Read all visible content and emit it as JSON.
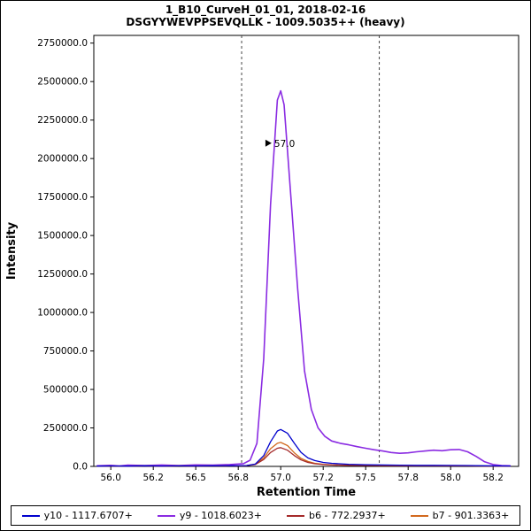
{
  "title": {
    "line1": "1_B10_CurveH_01_01, 2018-02-16",
    "line2": "DSGYYWEVPPSEVQLLK - 1009.5035++ (heavy)"
  },
  "chart_data": {
    "type": "line",
    "title": "1_B10_CurveH_01_01, 2018-02-16",
    "subtitle": "DSGYYWEVPPSEVQLLK - 1009.5035++ (heavy)",
    "xlabel": "Retention Time",
    "ylabel": "Intensity",
    "xlim": [
      55.9,
      58.4
    ],
    "ylim": [
      0,
      2800000
    ],
    "grid": false,
    "legend_position": "bottom",
    "y_tick_step": 250000,
    "y_tick_max": 2750000,
    "x_tick_values": [
      56.0,
      56.25,
      56.5,
      56.75,
      57.0,
      57.25,
      57.5,
      57.75,
      58.0,
      58.25
    ],
    "x_tick_labels": [
      "56.0",
      "56.2",
      "56.5",
      "56.8",
      "57.0",
      "57.2",
      "57.5",
      "57.8",
      "58.0",
      "58.2"
    ],
    "integration_boundaries": [
      56.77,
      57.58
    ],
    "annotation": {
      "label": "57.0",
      "x": 56.91,
      "y": 2100000,
      "color": "#6a35c8"
    },
    "draw_order": [
      1,
      3,
      2,
      0
    ],
    "series": [
      {
        "id": "y10",
        "label": "y10 - 1117.6707+",
        "color": "#0000cd",
        "stroke_width": 1.3,
        "points": [
          [
            55.92,
            2000
          ],
          [
            56.0,
            3000
          ],
          [
            56.1,
            2000
          ],
          [
            56.2,
            4000
          ],
          [
            56.3,
            2500
          ],
          [
            56.4,
            3500
          ],
          [
            56.5,
            3000
          ],
          [
            56.6,
            4000
          ],
          [
            56.7,
            4500
          ],
          [
            56.8,
            6000
          ],
          [
            56.85,
            15000
          ],
          [
            56.9,
            70000
          ],
          [
            56.94,
            160000
          ],
          [
            56.98,
            230000
          ],
          [
            57.0,
            240000
          ],
          [
            57.04,
            215000
          ],
          [
            57.08,
            150000
          ],
          [
            57.12,
            90000
          ],
          [
            57.16,
            55000
          ],
          [
            57.2,
            38000
          ],
          [
            57.25,
            26000
          ],
          [
            57.3,
            20000
          ],
          [
            57.4,
            14000
          ],
          [
            57.5,
            11000
          ],
          [
            57.6,
            9000
          ],
          [
            57.7,
            8000
          ],
          [
            57.8,
            7000
          ],
          [
            57.9,
            7000
          ],
          [
            58.0,
            6500
          ],
          [
            58.1,
            6000
          ],
          [
            58.2,
            4000
          ],
          [
            58.3,
            3000
          ],
          [
            58.35,
            2500
          ]
        ]
      },
      {
        "id": "y9",
        "label": "y9 - 1018.6023+",
        "color": "#8a2be2",
        "stroke_width": 1.6,
        "points": [
          [
            55.92,
            4000
          ],
          [
            56.0,
            7000
          ],
          [
            56.05,
            3000
          ],
          [
            56.1,
            8000
          ],
          [
            56.2,
            5000
          ],
          [
            56.3,
            9000
          ],
          [
            56.4,
            6000
          ],
          [
            56.5,
            10000
          ],
          [
            56.6,
            8000
          ],
          [
            56.7,
            12000
          ],
          [
            56.78,
            18000
          ],
          [
            56.82,
            40000
          ],
          [
            56.86,
            150000
          ],
          [
            56.9,
            700000
          ],
          [
            56.94,
            1700000
          ],
          [
            56.98,
            2380000
          ],
          [
            57.0,
            2440000
          ],
          [
            57.02,
            2350000
          ],
          [
            57.06,
            1750000
          ],
          [
            57.1,
            1150000
          ],
          [
            57.14,
            620000
          ],
          [
            57.18,
            370000
          ],
          [
            57.22,
            250000
          ],
          [
            57.26,
            195000
          ],
          [
            57.3,
            165000
          ],
          [
            57.35,
            150000
          ],
          [
            57.4,
            140000
          ],
          [
            57.45,
            128000
          ],
          [
            57.5,
            118000
          ],
          [
            57.55,
            108000
          ],
          [
            57.6,
            100000
          ],
          [
            57.65,
            90000
          ],
          [
            57.7,
            85000
          ],
          [
            57.75,
            88000
          ],
          [
            57.8,
            95000
          ],
          [
            57.85,
            100000
          ],
          [
            57.9,
            105000
          ],
          [
            57.95,
            102000
          ],
          [
            58.0,
            108000
          ],
          [
            58.05,
            110000
          ],
          [
            58.1,
            95000
          ],
          [
            58.15,
            65000
          ],
          [
            58.2,
            30000
          ],
          [
            58.25,
            12000
          ],
          [
            58.3,
            6000
          ],
          [
            58.35,
            4000
          ]
        ]
      },
      {
        "id": "b6",
        "label": "b6 - 772.2937+",
        "color": "#a52a2a",
        "stroke_width": 1.3,
        "points": [
          [
            55.92,
            1500
          ],
          [
            56.0,
            2500
          ],
          [
            56.1,
            1800
          ],
          [
            56.2,
            3000
          ],
          [
            56.3,
            2000
          ],
          [
            56.4,
            2800
          ],
          [
            56.5,
            2200
          ],
          [
            56.6,
            3000
          ],
          [
            56.7,
            3200
          ],
          [
            56.8,
            5000
          ],
          [
            56.85,
            12000
          ],
          [
            56.9,
            45000
          ],
          [
            56.94,
            90000
          ],
          [
            56.98,
            118000
          ],
          [
            57.0,
            122000
          ],
          [
            57.04,
            105000
          ],
          [
            57.08,
            70000
          ],
          [
            57.12,
            42000
          ],
          [
            57.16,
            26000
          ],
          [
            57.2,
            17000
          ],
          [
            57.25,
            12000
          ],
          [
            57.3,
            9000
          ],
          [
            57.4,
            7000
          ],
          [
            57.5,
            6000
          ],
          [
            57.6,
            5000
          ],
          [
            57.7,
            4500
          ],
          [
            57.8,
            4000
          ],
          [
            57.9,
            4000
          ],
          [
            58.0,
            3800
          ],
          [
            58.1,
            3500
          ],
          [
            58.2,
            2500
          ],
          [
            58.3,
            2000
          ],
          [
            58.35,
            1800
          ]
        ]
      },
      {
        "id": "b7",
        "label": "b7 - 901.3363+",
        "color": "#d2691e",
        "stroke_width": 1.3,
        "points": [
          [
            55.92,
            1800
          ],
          [
            56.0,
            3000
          ],
          [
            56.1,
            2200
          ],
          [
            56.2,
            3500
          ],
          [
            56.3,
            2500
          ],
          [
            56.4,
            3200
          ],
          [
            56.5,
            2800
          ],
          [
            56.6,
            3500
          ],
          [
            56.7,
            3800
          ],
          [
            56.8,
            6000
          ],
          [
            56.85,
            14000
          ],
          [
            56.9,
            55000
          ],
          [
            56.94,
            115000
          ],
          [
            56.98,
            150000
          ],
          [
            57.0,
            156000
          ],
          [
            57.04,
            135000
          ],
          [
            57.08,
            88000
          ],
          [
            57.12,
            52000
          ],
          [
            57.16,
            32000
          ],
          [
            57.2,
            20000
          ],
          [
            57.25,
            14000
          ],
          [
            57.3,
            10000
          ],
          [
            57.4,
            8000
          ],
          [
            57.5,
            6500
          ],
          [
            57.6,
            5500
          ],
          [
            57.7,
            5000
          ],
          [
            57.8,
            4500
          ],
          [
            57.9,
            4500
          ],
          [
            58.0,
            4200
          ],
          [
            58.1,
            4000
          ],
          [
            58.2,
            3000
          ],
          [
            58.3,
            2200
          ],
          [
            58.35,
            2000
          ]
        ]
      }
    ]
  }
}
